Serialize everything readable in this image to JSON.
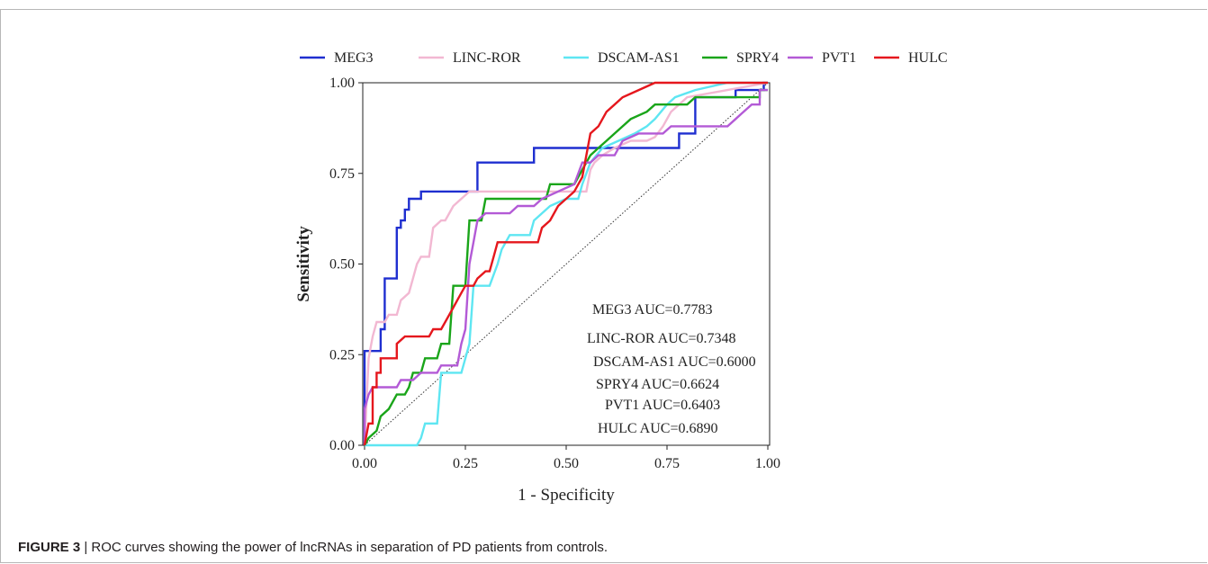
{
  "caption": {
    "label": "FIGURE 3",
    "separator": " | ",
    "text": "ROC curves showing the power of lncRNAs in separation of PD patients from controls."
  },
  "chart_data": {
    "type": "line",
    "title": "",
    "xlabel": "1 - Specificity",
    "ylabel": "Sensitivity",
    "xlim": [
      0,
      1
    ],
    "ylim": [
      0,
      1
    ],
    "x_ticks": [
      "0.00",
      "0.25",
      "0.50",
      "0.75",
      "1.00"
    ],
    "y_ticks": [
      "0.00",
      "0.25",
      "0.50",
      "0.75",
      "1.00"
    ],
    "grid": false,
    "legend_position": "top",
    "reference_line": {
      "x": [
        0,
        1
      ],
      "y": [
        0,
        1
      ],
      "style": "dotted"
    },
    "series": [
      {
        "name": "MEG3",
        "color": "#1f2fd0",
        "points": [
          [
            0,
            0
          ],
          [
            0,
            0.26
          ],
          [
            0.04,
            0.26
          ],
          [
            0.04,
            0.32
          ],
          [
            0.05,
            0.32
          ],
          [
            0.05,
            0.46
          ],
          [
            0.08,
            0.46
          ],
          [
            0.08,
            0.6
          ],
          [
            0.09,
            0.6
          ],
          [
            0.09,
            0.62
          ],
          [
            0.1,
            0.62
          ],
          [
            0.1,
            0.65
          ],
          [
            0.11,
            0.65
          ],
          [
            0.11,
            0.68
          ],
          [
            0.14,
            0.68
          ],
          [
            0.14,
            0.7
          ],
          [
            0.28,
            0.7
          ],
          [
            0.28,
            0.78
          ],
          [
            0.42,
            0.78
          ],
          [
            0.42,
            0.82
          ],
          [
            0.78,
            0.82
          ],
          [
            0.78,
            0.86
          ],
          [
            0.82,
            0.86
          ],
          [
            0.82,
            0.96
          ],
          [
            0.92,
            0.96
          ],
          [
            0.92,
            0.98
          ],
          [
            0.99,
            0.98
          ],
          [
            0.99,
            1
          ],
          [
            1,
            1
          ]
        ]
      },
      {
        "name": "LINC-ROR",
        "color": "#f2b8d2",
        "points": [
          [
            0,
            0
          ],
          [
            0.01,
            0.24
          ],
          [
            0.02,
            0.3
          ],
          [
            0.03,
            0.34
          ],
          [
            0.05,
            0.34
          ],
          [
            0.06,
            0.36
          ],
          [
            0.08,
            0.36
          ],
          [
            0.09,
            0.4
          ],
          [
            0.11,
            0.42
          ],
          [
            0.12,
            0.46
          ],
          [
            0.13,
            0.5
          ],
          [
            0.14,
            0.52
          ],
          [
            0.16,
            0.52
          ],
          [
            0.17,
            0.6
          ],
          [
            0.19,
            0.62
          ],
          [
            0.2,
            0.62
          ],
          [
            0.21,
            0.64
          ],
          [
            0.22,
            0.66
          ],
          [
            0.24,
            0.68
          ],
          [
            0.26,
            0.7
          ],
          [
            0.55,
            0.7
          ],
          [
            0.56,
            0.76
          ],
          [
            0.57,
            0.78
          ],
          [
            0.59,
            0.8
          ],
          [
            0.62,
            0.82
          ],
          [
            0.66,
            0.84
          ],
          [
            0.7,
            0.84
          ],
          [
            0.72,
            0.85
          ],
          [
            0.74,
            0.88
          ],
          [
            0.76,
            0.92
          ],
          [
            0.8,
            0.96
          ],
          [
            0.9,
            0.98
          ],
          [
            1,
            1
          ]
        ]
      },
      {
        "name": "DSCAM-AS1",
        "color": "#5ee6f2",
        "points": [
          [
            0,
            0
          ],
          [
            0.13,
            0
          ],
          [
            0.14,
            0.02
          ],
          [
            0.15,
            0.06
          ],
          [
            0.18,
            0.06
          ],
          [
            0.19,
            0.2
          ],
          [
            0.24,
            0.2
          ],
          [
            0.26,
            0.28
          ],
          [
            0.27,
            0.44
          ],
          [
            0.31,
            0.44
          ],
          [
            0.33,
            0.5
          ],
          [
            0.34,
            0.54
          ],
          [
            0.36,
            0.58
          ],
          [
            0.41,
            0.58
          ],
          [
            0.42,
            0.62
          ],
          [
            0.46,
            0.66
          ],
          [
            0.5,
            0.68
          ],
          [
            0.53,
            0.68
          ],
          [
            0.54,
            0.72
          ],
          [
            0.56,
            0.78
          ],
          [
            0.59,
            0.82
          ],
          [
            0.63,
            0.84
          ],
          [
            0.67,
            0.86
          ],
          [
            0.7,
            0.88
          ],
          [
            0.72,
            0.9
          ],
          [
            0.75,
            0.94
          ],
          [
            0.77,
            0.96
          ],
          [
            0.82,
            0.98
          ],
          [
            0.9,
            1
          ],
          [
            1,
            1
          ]
        ]
      },
      {
        "name": "SPRY4",
        "color": "#1aa51a",
        "points": [
          [
            0,
            0
          ],
          [
            0.01,
            0.02
          ],
          [
            0.03,
            0.04
          ],
          [
            0.04,
            0.08
          ],
          [
            0.06,
            0.1
          ],
          [
            0.08,
            0.14
          ],
          [
            0.1,
            0.14
          ],
          [
            0.11,
            0.16
          ],
          [
            0.12,
            0.2
          ],
          [
            0.14,
            0.2
          ],
          [
            0.15,
            0.24
          ],
          [
            0.18,
            0.24
          ],
          [
            0.19,
            0.28
          ],
          [
            0.21,
            0.28
          ],
          [
            0.22,
            0.44
          ],
          [
            0.25,
            0.44
          ],
          [
            0.26,
            0.62
          ],
          [
            0.29,
            0.62
          ],
          [
            0.3,
            0.68
          ],
          [
            0.45,
            0.68
          ],
          [
            0.46,
            0.72
          ],
          [
            0.52,
            0.72
          ],
          [
            0.54,
            0.76
          ],
          [
            0.56,
            0.8
          ],
          [
            0.58,
            0.82
          ],
          [
            0.6,
            0.84
          ],
          [
            0.62,
            0.86
          ],
          [
            0.64,
            0.88
          ],
          [
            0.66,
            0.9
          ],
          [
            0.7,
            0.92
          ],
          [
            0.72,
            0.94
          ],
          [
            0.8,
            0.94
          ],
          [
            0.82,
            0.96
          ],
          [
            0.98,
            0.96
          ],
          [
            0.98,
            0.98
          ],
          [
            1,
            0.98
          ]
        ]
      },
      {
        "name": "PVT1",
        "color": "#b35ad6",
        "points": [
          [
            0,
            0
          ],
          [
            0,
            0.1
          ],
          [
            0.01,
            0.14
          ],
          [
            0.02,
            0.16
          ],
          [
            0.08,
            0.16
          ],
          [
            0.09,
            0.18
          ],
          [
            0.12,
            0.18
          ],
          [
            0.14,
            0.2
          ],
          [
            0.18,
            0.2
          ],
          [
            0.19,
            0.22
          ],
          [
            0.23,
            0.22
          ],
          [
            0.24,
            0.28
          ],
          [
            0.25,
            0.32
          ],
          [
            0.26,
            0.5
          ],
          [
            0.27,
            0.56
          ],
          [
            0.28,
            0.62
          ],
          [
            0.3,
            0.64
          ],
          [
            0.36,
            0.64
          ],
          [
            0.38,
            0.66
          ],
          [
            0.42,
            0.66
          ],
          [
            0.44,
            0.68
          ],
          [
            0.52,
            0.72
          ],
          [
            0.54,
            0.78
          ],
          [
            0.56,
            0.78
          ],
          [
            0.58,
            0.8
          ],
          [
            0.62,
            0.8
          ],
          [
            0.64,
            0.84
          ],
          [
            0.68,
            0.86
          ],
          [
            0.74,
            0.86
          ],
          [
            0.76,
            0.88
          ],
          [
            0.9,
            0.88
          ],
          [
            0.92,
            0.9
          ],
          [
            0.94,
            0.92
          ],
          [
            0.96,
            0.94
          ],
          [
            0.98,
            0.94
          ],
          [
            0.98,
            0.98
          ],
          [
            1,
            0.98
          ]
        ]
      },
      {
        "name": "HULC",
        "color": "#e5171d",
        "points": [
          [
            0,
            0
          ],
          [
            0.01,
            0.06
          ],
          [
            0.02,
            0.06
          ],
          [
            0.02,
            0.16
          ],
          [
            0.03,
            0.16
          ],
          [
            0.03,
            0.2
          ],
          [
            0.04,
            0.2
          ],
          [
            0.04,
            0.24
          ],
          [
            0.08,
            0.24
          ],
          [
            0.08,
            0.28
          ],
          [
            0.1,
            0.3
          ],
          [
            0.16,
            0.3
          ],
          [
            0.17,
            0.32
          ],
          [
            0.19,
            0.32
          ],
          [
            0.2,
            0.34
          ],
          [
            0.21,
            0.36
          ],
          [
            0.22,
            0.38
          ],
          [
            0.23,
            0.4
          ],
          [
            0.24,
            0.42
          ],
          [
            0.25,
            0.44
          ],
          [
            0.27,
            0.44
          ],
          [
            0.28,
            0.46
          ],
          [
            0.3,
            0.48
          ],
          [
            0.31,
            0.48
          ],
          [
            0.32,
            0.52
          ],
          [
            0.33,
            0.56
          ],
          [
            0.43,
            0.56
          ],
          [
            0.44,
            0.6
          ],
          [
            0.46,
            0.62
          ],
          [
            0.48,
            0.66
          ],
          [
            0.52,
            0.7
          ],
          [
            0.54,
            0.74
          ],
          [
            0.55,
            0.8
          ],
          [
            0.56,
            0.86
          ],
          [
            0.58,
            0.88
          ],
          [
            0.6,
            0.92
          ],
          [
            0.62,
            0.94
          ],
          [
            0.64,
            0.96
          ],
          [
            0.68,
            0.98
          ],
          [
            0.72,
            1
          ],
          [
            1,
            1
          ]
        ]
      }
    ],
    "annotations": [
      "MEG3 AUC=0.7783",
      "LINC-ROR AUC=0.7348",
      "DSCAM-AS1 AUC=0.6000",
      "SPRY4 AUC=0.6624",
      "PVT1 AUC=0.6403",
      "HULC AUC=0.6890"
    ]
  }
}
